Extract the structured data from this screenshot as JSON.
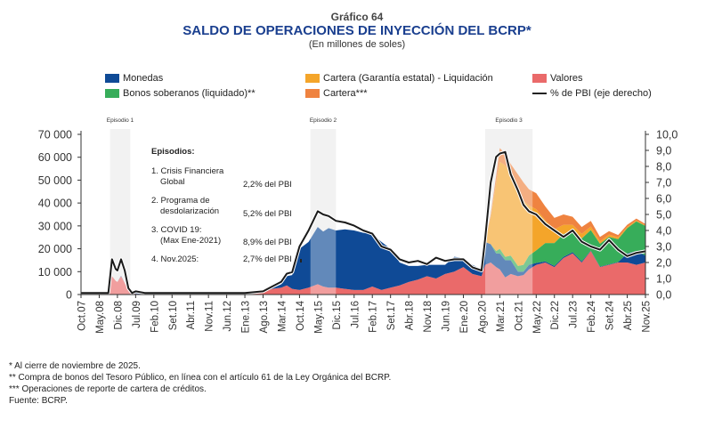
{
  "header": {
    "kicker": "Gráfico 64",
    "title": "SALDO DE OPERACIONES DE INYECCIÓN DEL BCRP*",
    "subtitle": "(En millones de soles)"
  },
  "legend": [
    {
      "key": "monedas",
      "label": "Monedas",
      "type": "area",
      "color": "#0f4a96"
    },
    {
      "key": "cartera_ge",
      "label": "Cartera (Garantía estatal) - Liquidación",
      "type": "area",
      "color": "#f4a52a"
    },
    {
      "key": "valores",
      "label": "Valores",
      "type": "area",
      "color": "#ea6a6a"
    },
    {
      "key": "bonos",
      "label": "Bonos soberanos (liquidado)**",
      "type": "area",
      "color": "#37ad5a"
    },
    {
      "key": "cartera",
      "label": "Cartera***",
      "type": "area",
      "color": "#ef8340"
    },
    {
      "key": "pbi",
      "label": "% de PBI (eje derecho)",
      "type": "line",
      "color": "#1a1a1a"
    }
  ],
  "episodes_panel": {
    "heading": "Episodios:",
    "items": [
      {
        "label_line1": "1. Crisis Financiera",
        "label_line2": "Global",
        "value": "2,2% del PBI"
      },
      {
        "label_line1": "2. Programa de",
        "label_line2": "desdolarización",
        "value": "5,2% del PBI"
      },
      {
        "label_line1": "3. COVID 19:",
        "label_line2": "(Max Ene-2021)",
        "value": "8,9% del PBI"
      },
      {
        "label_line1": "4. Nov.2025:",
        "label_line2": "",
        "value": "2,7% del PBI"
      }
    ]
  },
  "chart_data": {
    "type": "area",
    "stacked": true,
    "title": "SALDO DE OPERACIONES DE INYECCIÓN DEL BCRP*",
    "subtitle": "(En millones de soles)",
    "xlabel": "",
    "ylabel": "Millones de soles",
    "y2label": "% de PBI",
    "ylim": [
      0,
      70000
    ],
    "y2lim": [
      0,
      10
    ],
    "yticks": [
      "0",
      "10 000",
      "20 000",
      "30 000",
      "40 000",
      "50 000",
      "60 000",
      "70 000"
    ],
    "y2ticks": [
      "0,0",
      "1,0",
      "2,0",
      "3,0",
      "4,0",
      "5,0",
      "6,0",
      "7,0",
      "8,0",
      "9,0",
      "10,0"
    ],
    "x_tick_labels": [
      "Oct.07",
      "May.08",
      "Dic.08",
      "Jul.09",
      "Feb.10",
      "Set.10",
      "Abr.11",
      "Nov.11",
      "Jun.12",
      "Ene.13",
      "Ago.13",
      "Mar.14",
      "Oct.14",
      "May.15",
      "Dic.15",
      "Jul.16",
      "Feb.17",
      "Set.17",
      "Abr.18",
      "Nov.18",
      "Jun.19",
      "Ene.20",
      "Ago.20",
      "Mar.21",
      "Oct.21",
      "May.22",
      "Dic.22",
      "Jul.23",
      "Feb.24",
      "Set.24",
      "Abr.25",
      "Nov.25"
    ],
    "grid": false,
    "legend_position": "top",
    "shaded_periods": [
      {
        "label": "Episodio 1",
        "from_index": 1.6,
        "to_index": 2.7
      },
      {
        "label": "Episodio 2",
        "from_index": 12.6,
        "to_index": 14.0
      },
      {
        "label": "Episodio 3",
        "from_index": 22.2,
        "to_index": 24.8
      }
    ],
    "x_index": [
      0,
      0.5,
      1,
      1.5,
      1.7,
      1.9,
      2.0,
      2.2,
      2.4,
      2.6,
      2.8,
      3,
      3.5,
      4,
      5,
      6,
      7,
      8,
      9,
      10,
      10.5,
      11,
      11.3,
      11.6,
      12,
      12.5,
      13,
      13.3,
      13.6,
      14,
      14.5,
      15,
      15.5,
      16,
      16.5,
      17,
      17.5,
      18,
      18.5,
      19,
      19.5,
      20,
      20.5,
      21,
      21.5,
      22,
      22.2,
      22.5,
      22.8,
      23,
      23.3,
      23.6,
      24,
      24.3,
      24.6,
      25,
      25.5,
      26,
      26.5,
      27,
      27.5,
      28,
      28.5,
      29,
      29.5,
      30,
      30.5,
      31
    ],
    "series": [
      {
        "name": "Valores",
        "key": "valores",
        "values": [
          0,
          0,
          0,
          0,
          8000,
          6000,
          5500,
          8000,
          5000,
          1500,
          500,
          300,
          200,
          300,
          200,
          100,
          200,
          300,
          200,
          1000,
          2500,
          3000,
          4000,
          2500,
          2000,
          3000,
          4500,
          3500,
          3000,
          3000,
          2500,
          2000,
          2000,
          3500,
          2000,
          3000,
          4000,
          5500,
          6500,
          8000,
          7000,
          9000,
          10000,
          12000,
          9000,
          8000,
          13000,
          14000,
          12000,
          11000,
          7500,
          9000,
          8000,
          8500,
          11000,
          13000,
          14000,
          12000,
          16000,
          18000,
          14000,
          19000,
          12000,
          13000,
          14000,
          14000,
          13000,
          14000
        ]
      },
      {
        "name": "Monedas",
        "key": "monedas",
        "values": [
          0,
          0,
          0,
          0,
          0,
          0,
          0,
          200,
          0,
          0,
          200,
          200,
          200,
          100,
          100,
          100,
          100,
          100,
          100,
          100,
          200,
          1500,
          4000,
          6000,
          18000,
          20000,
          25000,
          24000,
          26000,
          25000,
          26000,
          26000,
          25000,
          23000,
          21000,
          17000,
          10000,
          7000,
          6000,
          5000,
          6000,
          4000,
          6500,
          4000,
          4000,
          3000,
          10000,
          8000,
          6000,
          7000,
          7500,
          6000,
          2000,
          1500,
          2000,
          800,
          500,
          500,
          500,
          500,
          500,
          200,
          200,
          200,
          200,
          4000,
          6000,
          3000
        ]
      },
      {
        "name": "Bonos soberanos (liquidado)**",
        "key": "bonos",
        "values": [
          0,
          0,
          0,
          0,
          0,
          0,
          0,
          0,
          0,
          0,
          0,
          0,
          0,
          0,
          0,
          0,
          0,
          0,
          0,
          0,
          0,
          0,
          0,
          0,
          0,
          0,
          0,
          0,
          0,
          0,
          0,
          0,
          0,
          0,
          0,
          0,
          0,
          0,
          0,
          0,
          0,
          0,
          0,
          0,
          0,
          0,
          0,
          0,
          1000,
          2000,
          1500,
          2000,
          2500,
          3000,
          4000,
          5500,
          8000,
          10000,
          10000,
          9000,
          10000,
          9000,
          10000,
          12000,
          10000,
          11000,
          13000,
          13000
        ]
      },
      {
        "name": "Cartera (Garantía estatal) - Liquidación",
        "key": "cartera_ge",
        "values": [
          0,
          0,
          0,
          0,
          0,
          0,
          0,
          0,
          0,
          0,
          0,
          0,
          0,
          0,
          0,
          0,
          0,
          0,
          0,
          0,
          0,
          0,
          0,
          0,
          0,
          0,
          0,
          0,
          0,
          0,
          0,
          0,
          0,
          0,
          0,
          0,
          0,
          0,
          0,
          0,
          0,
          0,
          0,
          0,
          0,
          0,
          0,
          12000,
          30000,
          38000,
          40000,
          36000,
          34000,
          28000,
          22000,
          18000,
          10000,
          6000,
          4000,
          3000,
          2000,
          1500,
          1000,
          1000,
          800,
          500,
          400,
          300
        ]
      },
      {
        "name": "Cartera***",
        "key": "cartera",
        "values": [
          0,
          0,
          0,
          0,
          0,
          0,
          0,
          0,
          0,
          0,
          0,
          0,
          0,
          0,
          0,
          0,
          0,
          0,
          0,
          0,
          0,
          0,
          0,
          0,
          0,
          0,
          0,
          0,
          0,
          0,
          0,
          0,
          0,
          0,
          0,
          0,
          0,
          0,
          0,
          0,
          0,
          0,
          0,
          0,
          0,
          0,
          0,
          1000,
          3000,
          6000,
          5000,
          4000,
          6000,
          8000,
          7000,
          7000,
          6000,
          5000,
          4500,
          3500,
          3000,
          2500,
          2000,
          1500,
          1000,
          1000,
          800,
          500
        ]
      },
      {
        "name": "% de PBI (eje derecho)",
        "key": "pbi",
        "axis": "right",
        "values": [
          0.1,
          0.1,
          0.1,
          0.1,
          2.2,
          1.6,
          1.5,
          2.2,
          1.5,
          0.4,
          0.1,
          0.2,
          0.1,
          0.1,
          0.1,
          0.1,
          0.1,
          0.1,
          0.1,
          0.2,
          0.5,
          0.8,
          1.3,
          1.4,
          3.0,
          4.0,
          5.2,
          5.0,
          4.9,
          4.6,
          4.5,
          4.3,
          4.0,
          3.8,
          3.0,
          2.8,
          2.2,
          2.0,
          2.1,
          1.9,
          2.3,
          2.1,
          2.2,
          2.2,
          1.7,
          1.5,
          3.5,
          7.0,
          8.6,
          8.8,
          8.9,
          7.5,
          6.5,
          5.6,
          5.2,
          5.0,
          4.4,
          4.0,
          3.6,
          4.0,
          3.3,
          3.0,
          2.8,
          3.4,
          2.8,
          2.4,
          2.6,
          2.7
        ]
      }
    ],
    "annotations": [
      "Episodio 1",
      "Episodio 2",
      "Episodio 3"
    ]
  },
  "notes": [
    "*   Al cierre de noviembre de 2025.",
    "**   Compra de bonos del Tesoro Público, en línea con el artículo 61 de la Ley Orgánica del BCRP.",
    "***   Operaciones de reporte de cartera de créditos.",
    "Fuente: BCRP."
  ]
}
